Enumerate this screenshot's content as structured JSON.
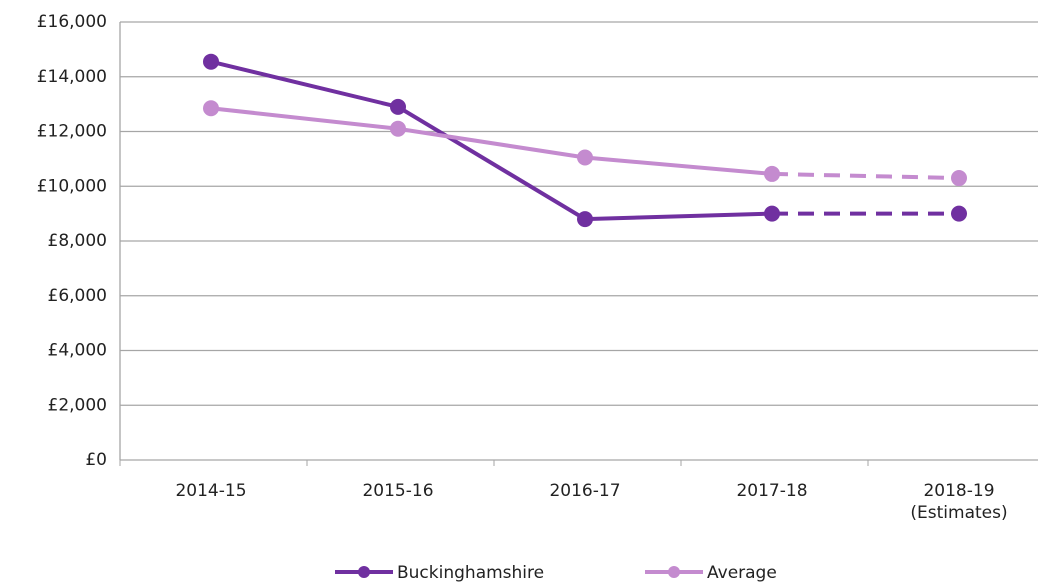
{
  "chart_data": {
    "type": "line",
    "categories": [
      "2014-15",
      "2015-16",
      "2016-17",
      "2017-18",
      "2018-19\n(Estimates)"
    ],
    "series": [
      {
        "name": "Buckinghamshire",
        "color": "#7030a0",
        "values": [
          14550,
          12900,
          8800,
          9000,
          9000
        ]
      },
      {
        "name": "Average",
        "color": "#c48bcf",
        "values": [
          12850,
          12100,
          11050,
          10450,
          10300
        ]
      }
    ],
    "ylim": [
      0,
      16000
    ],
    "yticks": [
      {
        "value": 0,
        "label": "£0"
      },
      {
        "value": 2000,
        "label": "£2,000"
      },
      {
        "value": 4000,
        "label": "£4,000"
      },
      {
        "value": 6000,
        "label": "£6,000"
      },
      {
        "value": 8000,
        "label": "£8,000"
      },
      {
        "value": 10000,
        "label": "£10,000"
      },
      {
        "value": 12000,
        "label": "£12,000"
      },
      {
        "value": 14000,
        "label": "£14,000"
      },
      {
        "value": 16000,
        "label": "£16,000"
      }
    ],
    "grid": true,
    "legend": "bottom"
  }
}
